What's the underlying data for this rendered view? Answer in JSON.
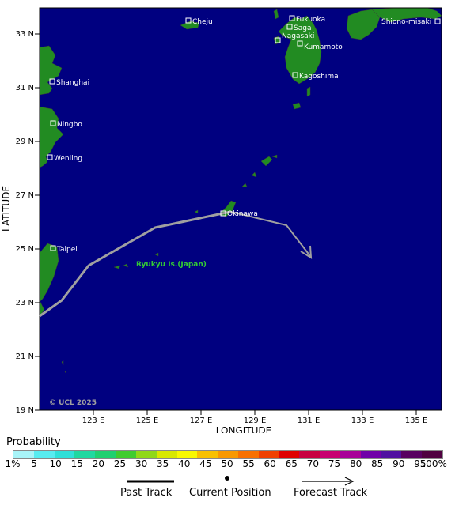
{
  "map": {
    "lat_labels": [
      "33 N",
      "31 N",
      "29 N",
      "27 N",
      "25 N",
      "23 N",
      "21 N",
      "19 N"
    ],
    "lon_labels": [
      "123 E",
      "125 E",
      "127 E",
      "129 E",
      "131 E",
      "133 E",
      "135 E"
    ],
    "y_axis_title": "LATITUDE",
    "x_axis_title": "LONGITUDE",
    "copyright": "© UCL 2025",
    "region_label": "Ryukyu Is.(Japan)",
    "cities": [
      {
        "name": "Cheju"
      },
      {
        "name": "Fukuoka"
      },
      {
        "name": "Saga"
      },
      {
        "name": "Nagasaki"
      },
      {
        "name": "Kumamoto"
      },
      {
        "name": "Kagoshima"
      },
      {
        "name": "Shiono-misaki"
      },
      {
        "name": "Shanghai"
      },
      {
        "name": "Ningbo"
      },
      {
        "name": "Wenling"
      },
      {
        "name": "Okinawa"
      },
      {
        "name": "Taipei"
      }
    ],
    "colors": {
      "ocean": "#000080",
      "land": "#228b22",
      "track": "#a0a0a0",
      "region_label": "#33cc33"
    }
  },
  "legend": {
    "title": "Probability",
    "ticks": [
      "1%",
      "5",
      "10",
      "15",
      "20",
      "25",
      "30",
      "35",
      "40",
      "45",
      "50",
      "55",
      "60",
      "65",
      "70",
      "75",
      "80",
      "85",
      "90",
      "95",
      "100%"
    ],
    "colors": [
      "#a8f4f8",
      "#58ecf0",
      "#30e0d8",
      "#20d8a0",
      "#20d070",
      "#40cc30",
      "#90d818",
      "#d8e800",
      "#f8f800",
      "#f8c000",
      "#f89800",
      "#f87000",
      "#f04000",
      "#e00000",
      "#c80040",
      "#c80070",
      "#a80098",
      "#7000a8",
      "#5010a0",
      "#580060",
      "#500040"
    ],
    "past_track": "Past Track",
    "current_position": "Current Position",
    "forecast_track": "Forecast Track"
  }
}
